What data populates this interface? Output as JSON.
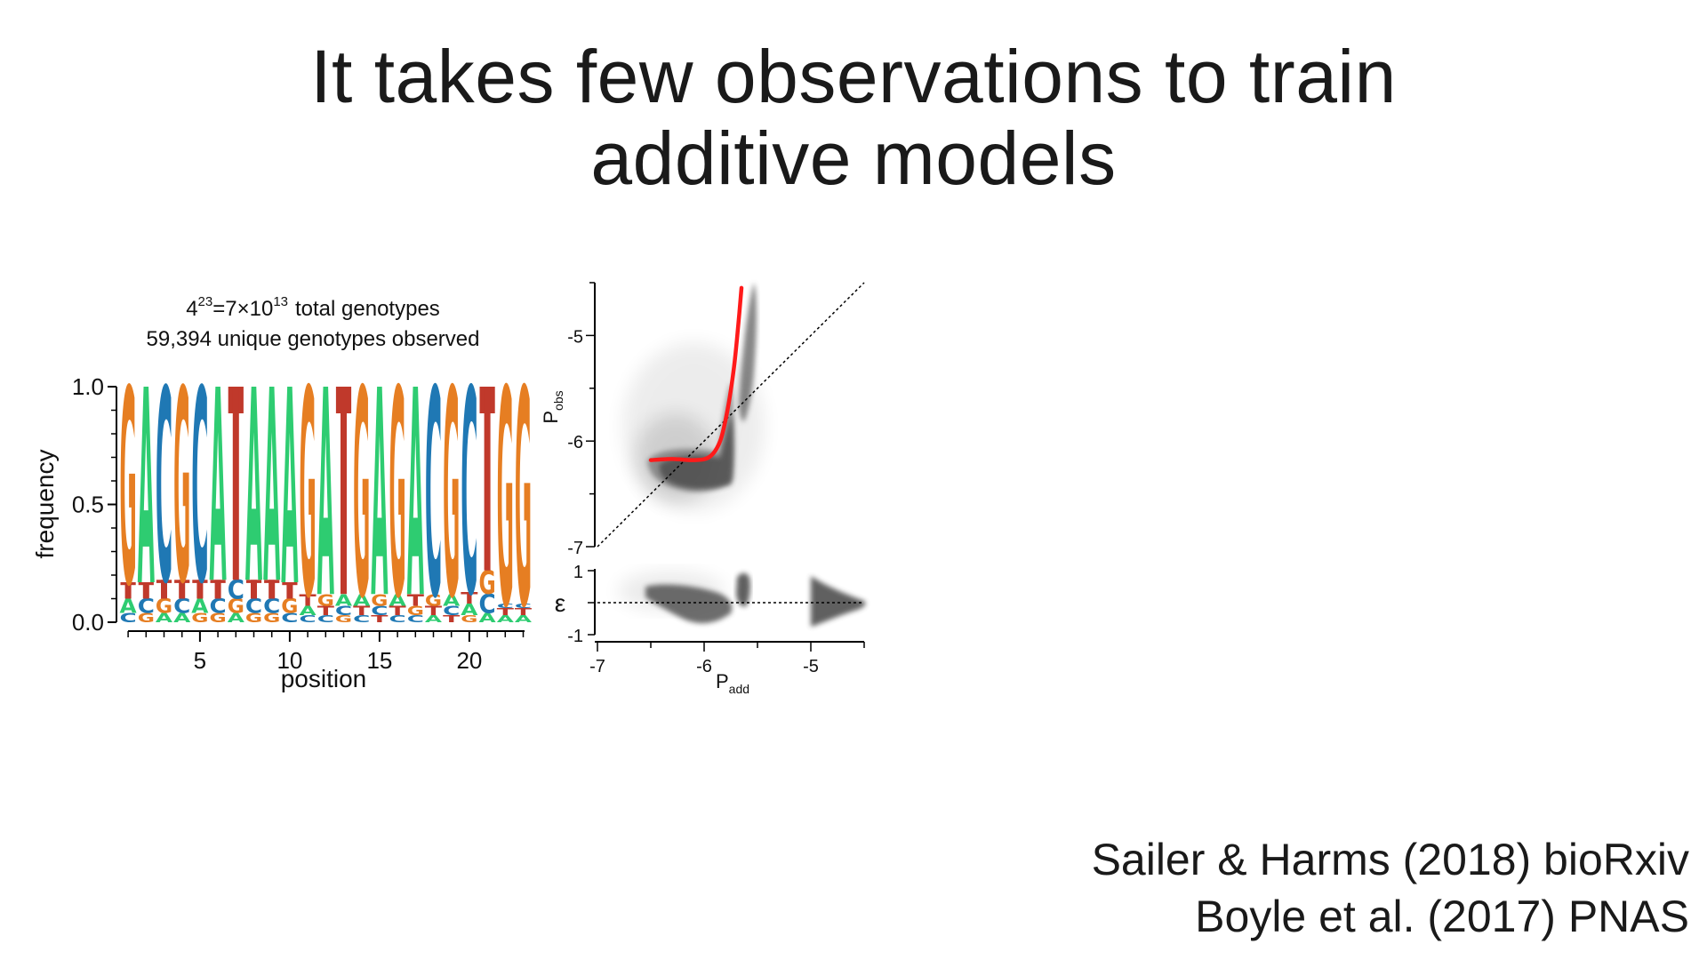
{
  "slide": {
    "title_line1": "It takes few observations to train",
    "title_line2": "additive models",
    "citation_1": "Sailer & Harms (2018) bioRxiv",
    "citation_2": "Boyle et al. (2017) PNAS"
  },
  "colors": {
    "A": "#2ecc71",
    "C": "#1f78b4",
    "G": "#e67e22",
    "T": "#c0392b",
    "scatter": "#444444",
    "fit": "#ff1a1a"
  },
  "chart_data": [
    {
      "type": "sequence-logo",
      "annotation": {
        "base": "4",
        "base_exp": "23",
        "mid": "=7×10",
        "mid_exp": "13",
        "total_label": "total genotypes",
        "line2": "59,394 unique genotypes observed"
      },
      "xlabel": "position",
      "ylabel": "frequency",
      "ylim": [
        0,
        1
      ],
      "yticks": [
        "0.0",
        "0.5",
        "1.0"
      ],
      "xticks": [
        "5",
        "10",
        "15",
        "20"
      ],
      "positions": [
        {
          "pos": 1,
          "letters": [
            {
              "b": "C",
              "f": 0.04
            },
            {
              "b": "A",
              "f": 0.06
            },
            {
              "b": "T",
              "f": 0.07
            },
            {
              "b": "G",
              "f": 0.83
            }
          ]
        },
        {
          "pos": 2,
          "letters": [
            {
              "b": "G",
              "f": 0.04
            },
            {
              "b": "C",
              "f": 0.06
            },
            {
              "b": "T",
              "f": 0.07
            },
            {
              "b": "A",
              "f": 0.83
            }
          ]
        },
        {
          "pos": 3,
          "letters": [
            {
              "b": "A",
              "f": 0.04
            },
            {
              "b": "G",
              "f": 0.06
            },
            {
              "b": "T",
              "f": 0.08
            },
            {
              "b": "C",
              "f": 0.82
            }
          ]
        },
        {
          "pos": 4,
          "letters": [
            {
              "b": "A",
              "f": 0.04
            },
            {
              "b": "C",
              "f": 0.06
            },
            {
              "b": "T",
              "f": 0.08
            },
            {
              "b": "G",
              "f": 0.82
            }
          ]
        },
        {
          "pos": 5,
          "letters": [
            {
              "b": "G",
              "f": 0.04
            },
            {
              "b": "A",
              "f": 0.06
            },
            {
              "b": "T",
              "f": 0.08
            },
            {
              "b": "C",
              "f": 0.82
            }
          ]
        },
        {
          "pos": 6,
          "letters": [
            {
              "b": "G",
              "f": 0.04
            },
            {
              "b": "C",
              "f": 0.06
            },
            {
              "b": "T",
              "f": 0.08
            },
            {
              "b": "A",
              "f": 0.82
            }
          ]
        },
        {
          "pos": 7,
          "letters": [
            {
              "b": "A",
              "f": 0.04
            },
            {
              "b": "G",
              "f": 0.06
            },
            {
              "b": "C",
              "f": 0.08
            },
            {
              "b": "T",
              "f": 0.82
            }
          ]
        },
        {
          "pos": 8,
          "letters": [
            {
              "b": "G",
              "f": 0.04
            },
            {
              "b": "C",
              "f": 0.06
            },
            {
              "b": "T",
              "f": 0.08
            },
            {
              "b": "A",
              "f": 0.82
            }
          ]
        },
        {
          "pos": 9,
          "letters": [
            {
              "b": "G",
              "f": 0.04
            },
            {
              "b": "C",
              "f": 0.06
            },
            {
              "b": "T",
              "f": 0.08
            },
            {
              "b": "A",
              "f": 0.82
            }
          ]
        },
        {
          "pos": 10,
          "letters": [
            {
              "b": "C",
              "f": 0.04
            },
            {
              "b": "G",
              "f": 0.06
            },
            {
              "b": "T",
              "f": 0.07
            },
            {
              "b": "A",
              "f": 0.83
            }
          ]
        },
        {
          "pos": 11,
          "letters": [
            {
              "b": "C",
              "f": 0.03
            },
            {
              "b": "A",
              "f": 0.04
            },
            {
              "b": "T",
              "f": 0.05
            },
            {
              "b": "G",
              "f": 0.88
            }
          ]
        },
        {
          "pos": 12,
          "letters": [
            {
              "b": "C",
              "f": 0.03
            },
            {
              "b": "T",
              "f": 0.04
            },
            {
              "b": "G",
              "f": 0.05
            },
            {
              "b": "A",
              "f": 0.88
            }
          ]
        },
        {
          "pos": 13,
          "letters": [
            {
              "b": "G",
              "f": 0.03
            },
            {
              "b": "C",
              "f": 0.04
            },
            {
              "b": "A",
              "f": 0.05
            },
            {
              "b": "T",
              "f": 0.88
            }
          ]
        },
        {
          "pos": 14,
          "letters": [
            {
              "b": "C",
              "f": 0.03
            },
            {
              "b": "T",
              "f": 0.04
            },
            {
              "b": "A",
              "f": 0.05
            },
            {
              "b": "G",
              "f": 0.88
            }
          ]
        },
        {
          "pos": 15,
          "letters": [
            {
              "b": "T",
              "f": 0.03
            },
            {
              "b": "C",
              "f": 0.04
            },
            {
              "b": "G",
              "f": 0.05
            },
            {
              "b": "A",
              "f": 0.88
            }
          ]
        },
        {
          "pos": 16,
          "letters": [
            {
              "b": "C",
              "f": 0.03
            },
            {
              "b": "T",
              "f": 0.04
            },
            {
              "b": "A",
              "f": 0.05
            },
            {
              "b": "G",
              "f": 0.88
            }
          ]
        },
        {
          "pos": 17,
          "letters": [
            {
              "b": "C",
              "f": 0.03
            },
            {
              "b": "G",
              "f": 0.04
            },
            {
              "b": "T",
              "f": 0.05
            },
            {
              "b": "A",
              "f": 0.88
            }
          ]
        },
        {
          "pos": 18,
          "letters": [
            {
              "b": "A",
              "f": 0.03
            },
            {
              "b": "T",
              "f": 0.04
            },
            {
              "b": "G",
              "f": 0.05
            },
            {
              "b": "C",
              "f": 0.88
            }
          ]
        },
        {
          "pos": 19,
          "letters": [
            {
              "b": "T",
              "f": 0.03
            },
            {
              "b": "C",
              "f": 0.04
            },
            {
              "b": "A",
              "f": 0.05
            },
            {
              "b": "G",
              "f": 0.88
            }
          ]
        },
        {
          "pos": 20,
          "letters": [
            {
              "b": "G",
              "f": 0.03
            },
            {
              "b": "A",
              "f": 0.05
            },
            {
              "b": "T",
              "f": 0.05
            },
            {
              "b": "C",
              "f": 0.87
            }
          ]
        },
        {
          "pos": 21,
          "letters": [
            {
              "b": "A",
              "f": 0.04
            },
            {
              "b": "C",
              "f": 0.08
            },
            {
              "b": "G",
              "f": 0.1
            },
            {
              "b": "T",
              "f": 0.78
            }
          ]
        },
        {
          "pos": 22,
          "letters": [
            {
              "b": "A",
              "f": 0.03
            },
            {
              "b": "T",
              "f": 0.03
            },
            {
              "b": "C",
              "f": 0.02
            },
            {
              "b": "G",
              "f": 0.92
            }
          ]
        },
        {
          "pos": 23,
          "letters": [
            {
              "b": "A",
              "f": 0.03
            },
            {
              "b": "T",
              "f": 0.03
            },
            {
              "b": "C",
              "f": 0.02
            },
            {
              "b": "G",
              "f": 0.92
            }
          ]
        }
      ]
    },
    {
      "type": "scatter",
      "xlabel": "P",
      "xlabel_sub": "add",
      "ylabel": "P",
      "ylabel_sub": "obs",
      "xlim": [
        -7,
        -4.5
      ],
      "ylim": [
        -7,
        -4.5
      ],
      "xticks": [
        "-7",
        "-6",
        "-5"
      ],
      "yticks": [
        "-7",
        "-6",
        "-5"
      ],
      "reference_line": "y = x",
      "fit_curve": [
        [
          -6.5,
          -6.18
        ],
        [
          -6.3,
          -6.17
        ],
        [
          -6.1,
          -6.18
        ],
        [
          -5.95,
          -6.15
        ],
        [
          -5.85,
          -6.0
        ],
        [
          -5.78,
          -5.7
        ],
        [
          -5.72,
          -5.3
        ],
        [
          -5.68,
          -4.9
        ],
        [
          -5.65,
          -4.55
        ]
      ],
      "residual_panel": {
        "ylabel": "ε",
        "ylim": [
          -1,
          1
        ],
        "yticks": [
          "1",
          "-1"
        ]
      }
    }
  ]
}
